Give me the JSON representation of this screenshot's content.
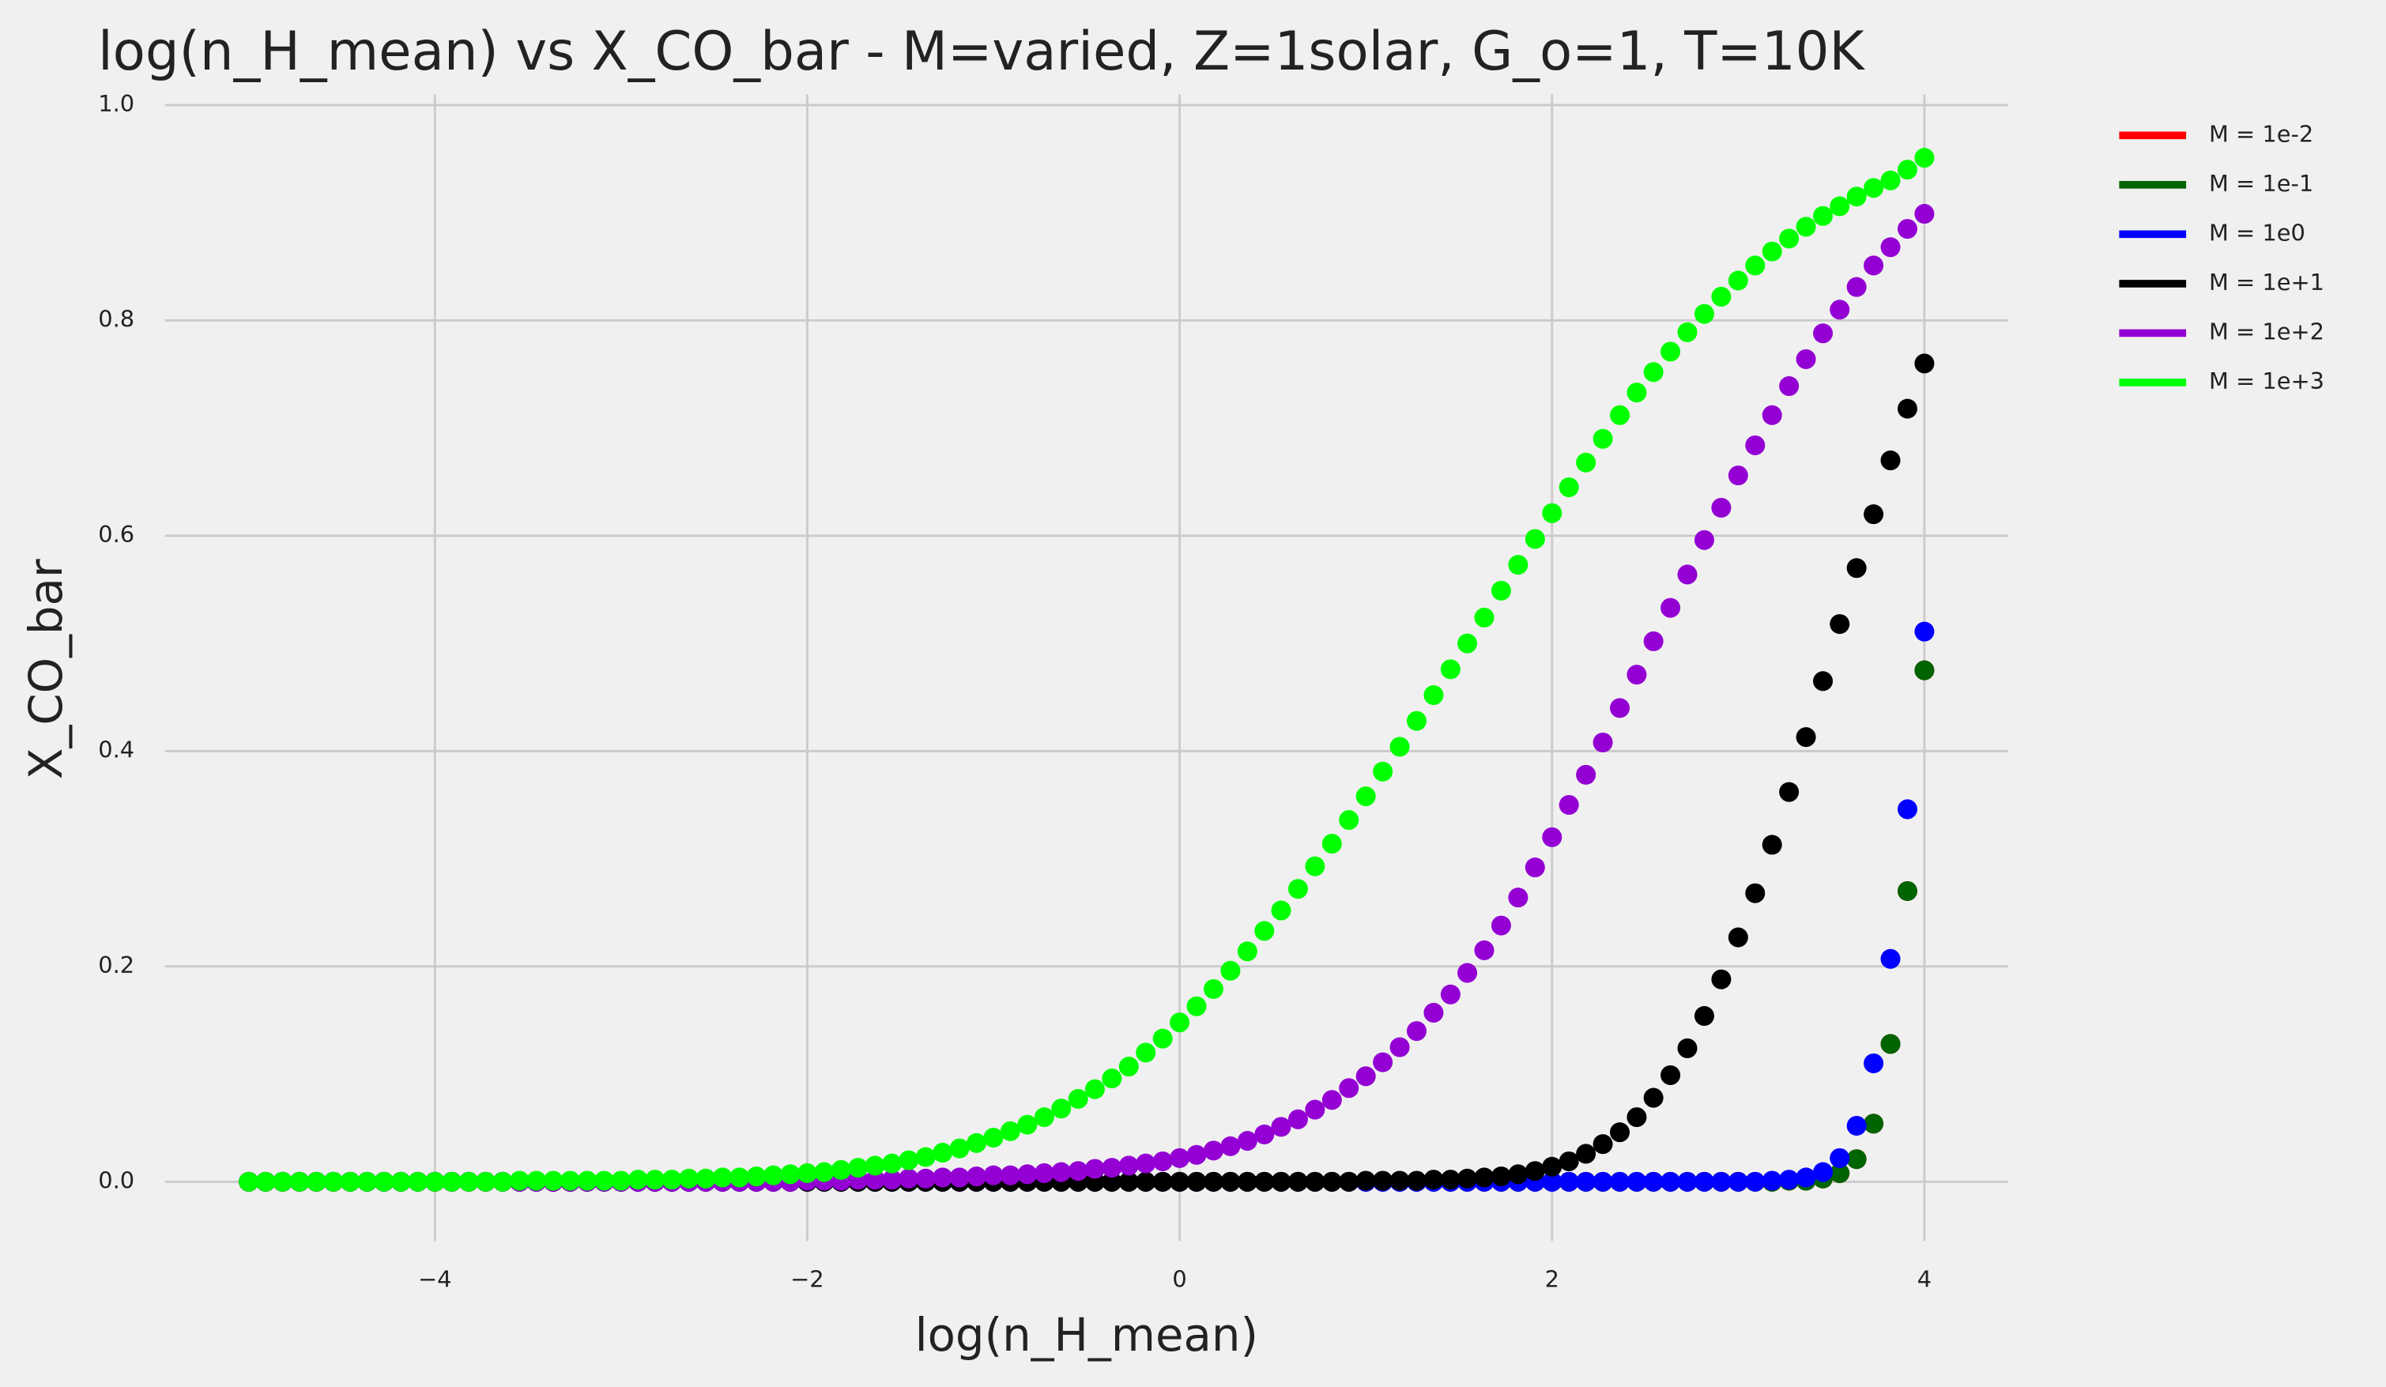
{
  "chart_data": {
    "type": "scatter",
    "title": "log(n_H_mean) vs X_CO_bar - M=varied, Z=1solar, G_o=1, T=10K",
    "x_label": "log(n_H_mean)",
    "y_label": "X_CO_bar",
    "xlim": [
      -5.45,
      4.45
    ],
    "ylim": [
      -0.055,
      1.01
    ],
    "xticks": [
      {
        "value": -4,
        "label": "−4"
      },
      {
        "value": -2,
        "label": "−2"
      },
      0,
      2,
      4
    ],
    "yticks": [
      {
        "value": 0,
        "label": "0.0"
      },
      0.2,
      0.4,
      0.6,
      0.8,
      {
        "value": 1,
        "label": "1.0"
      }
    ],
    "grid": true,
    "legend": "outside-right",
    "x": [
      -5,
      -4.909,
      -4.818,
      -4.727,
      -4.636,
      -4.545,
      -4.455,
      -4.364,
      -4.273,
      -4.182,
      -4.091,
      -4,
      -3.909,
      -3.818,
      -3.727,
      -3.636,
      -3.545,
      -3.455,
      -3.364,
      -3.273,
      -3.182,
      -3.091,
      -3,
      -2.909,
      -2.818,
      -2.727,
      -2.636,
      -2.545,
      -2.455,
      -2.364,
      -2.273,
      -2.182,
      -2.091,
      -2,
      -1.909,
      -1.818,
      -1.727,
      -1.636,
      -1.545,
      -1.455,
      -1.364,
      -1.273,
      -1.182,
      -1.091,
      -1,
      -0.909,
      -0.818,
      -0.727,
      -0.636,
      -0.545,
      -0.455,
      -0.364,
      -0.273,
      -0.182,
      -0.091,
      0,
      0.091,
      0.182,
      0.273,
      0.364,
      0.455,
      0.545,
      0.636,
      0.727,
      0.818,
      0.909,
      1,
      1.091,
      1.182,
      1.273,
      1.364,
      1.455,
      1.545,
      1.636,
      1.727,
      1.818,
      1.909,
      2,
      2.091,
      2.182,
      2.273,
      2.364,
      2.455,
      2.545,
      2.636,
      2.727,
      2.818,
      2.909,
      3,
      3.091,
      3.182,
      3.273,
      3.364,
      3.455,
      3.545,
      3.636,
      3.727,
      3.818,
      3.909,
      4
    ],
    "series": [
      {
        "name": "M = 1e-2",
        "color": "#ff0000",
        "values": [
          0,
          0,
          0,
          0,
          0,
          0,
          0,
          0,
          0,
          0,
          0,
          0,
          0,
          0,
          0,
          0,
          0,
          0,
          0,
          0,
          0,
          0,
          0,
          0,
          0,
          0,
          0,
          0,
          0,
          0,
          0,
          0,
          0,
          0,
          0,
          0,
          0,
          0,
          0,
          0,
          0,
          0,
          0,
          0,
          0,
          0,
          0,
          0,
          0,
          0,
          0,
          0,
          0,
          0,
          0,
          0,
          0,
          0,
          0,
          0,
          0,
          0,
          0,
          0,
          0,
          0,
          0,
          0,
          0,
          0,
          0,
          0,
          0,
          0,
          0,
          0,
          0,
          0,
          0,
          0,
          0,
          0,
          0,
          0,
          0,
          0,
          0,
          0,
          0,
          0,
          0,
          0.001,
          0.001,
          0.003,
          0.008,
          0.021,
          0.054,
          0.128,
          0.27,
          0.475
        ]
      },
      {
        "name": "M = 1e-1",
        "color": "#006400",
        "values": [
          0,
          0,
          0,
          0,
          0,
          0,
          0,
          0,
          0,
          0,
          0,
          0,
          0,
          0,
          0,
          0,
          0,
          0,
          0,
          0,
          0,
          0,
          0,
          0,
          0,
          0,
          0,
          0,
          0,
          0,
          0,
          0,
          0,
          0,
          0,
          0,
          0,
          0,
          0,
          0,
          0,
          0,
          0,
          0,
          0,
          0,
          0,
          0,
          0,
          0,
          0,
          0,
          0,
          0,
          0,
          0,
          0,
          0,
          0,
          0,
          0,
          0,
          0,
          0,
          0,
          0,
          0,
          0,
          0,
          0,
          0,
          0,
          0,
          0,
          0,
          0,
          0,
          0,
          0,
          0,
          0,
          0,
          0,
          0,
          0,
          0,
          0,
          0,
          0,
          0,
          0,
          0.001,
          0.001,
          0.003,
          0.008,
          0.021,
          0.054,
          0.128,
          0.27,
          0.475
        ]
      },
      {
        "name": "M = 1e0",
        "color": "#0000ff",
        "values": [
          0,
          0,
          0,
          0,
          0,
          0,
          0,
          0,
          0,
          0,
          0,
          0,
          0,
          0,
          0,
          0,
          0,
          0,
          0,
          0,
          0,
          0,
          0,
          0,
          0,
          0,
          0,
          0,
          0,
          0,
          0,
          0,
          0,
          0,
          0,
          0,
          0,
          0,
          0,
          0,
          0,
          0,
          0,
          0,
          0,
          0,
          0,
          0,
          0,
          0,
          0,
          0,
          0,
          0,
          0,
          0,
          0,
          0,
          0,
          0,
          0,
          0,
          0,
          0,
          0,
          0,
          0,
          0,
          0,
          0,
          0,
          0,
          0,
          0,
          0,
          0,
          0,
          0,
          0,
          0,
          0,
          0,
          0,
          0,
          0,
          0,
          0,
          0,
          0,
          0,
          0.001,
          0.002,
          0.004,
          0.009,
          0.022,
          0.052,
          0.11,
          0.207,
          0.346,
          0.511
        ]
      },
      {
        "name": "M = 1e+1",
        "color": "#000000",
        "values": [
          0,
          0,
          0,
          0,
          0,
          0,
          0,
          0,
          0,
          0,
          0,
          0,
          0,
          0,
          0,
          0,
          0,
          0,
          0,
          0,
          0,
          0,
          0,
          0,
          0,
          0,
          0,
          0,
          0,
          0,
          0,
          0,
          0,
          0,
          0,
          0,
          0,
          0,
          0,
          0,
          0,
          0,
          0,
          0,
          0,
          0,
          0,
          0,
          0,
          0,
          0,
          0,
          0,
          0,
          0,
          0,
          0,
          0,
          0,
          0,
          0,
          0,
          0,
          0,
          0,
          0,
          0.001,
          0.001,
          0.001,
          0.001,
          0.002,
          0.002,
          0.003,
          0.004,
          0.005,
          0.007,
          0.01,
          0.014,
          0.019,
          0.026,
          0.035,
          0.046,
          0.06,
          0.078,
          0.099,
          0.124,
          0.154,
          0.188,
          0.227,
          0.268,
          0.313,
          0.362,
          0.413,
          0.465,
          0.518,
          0.57,
          0.62,
          0.67,
          0.718,
          0.76
        ]
      },
      {
        "name": "M = 1e+2",
        "color": "#9400d3",
        "values": [
          0,
          0,
          0,
          0,
          0,
          0,
          0,
          0,
          0,
          0,
          0,
          0,
          0,
          0,
          0,
          0,
          0,
          0,
          0,
          0,
          0,
          0,
          0,
          0,
          0,
          0,
          0,
          0,
          0,
          0,
          0,
          0,
          0,
          0.001,
          0.001,
          0.001,
          0.002,
          0.002,
          0.002,
          0.003,
          0.003,
          0.004,
          0.004,
          0.005,
          0.006,
          0.006,
          0.007,
          0.008,
          0.009,
          0.01,
          0.012,
          0.013,
          0.015,
          0.017,
          0.019,
          0.022,
          0.025,
          0.029,
          0.033,
          0.038,
          0.044,
          0.051,
          0.058,
          0.067,
          0.076,
          0.087,
          0.098,
          0.111,
          0.125,
          0.14,
          0.157,
          0.174,
          0.194,
          0.215,
          0.238,
          0.264,
          0.292,
          0.32,
          0.35,
          0.378,
          0.408,
          0.44,
          0.471,
          0.502,
          0.533,
          0.564,
          0.596,
          0.626,
          0.656,
          0.684,
          0.712,
          0.739,
          0.764,
          0.788,
          0.81,
          0.831,
          0.851,
          0.868,
          0.885,
          0.899
        ]
      },
      {
        "name": "M = 1e+3",
        "color": "#00ff00",
        "values": [
          0,
          0,
          0,
          0,
          0,
          0,
          0,
          0,
          0,
          0,
          0,
          0,
          0,
          0,
          0,
          0,
          0.001,
          0.001,
          0.001,
          0.001,
          0.001,
          0.001,
          0.001,
          0.002,
          0.002,
          0.002,
          0.003,
          0.003,
          0.004,
          0.004,
          0.005,
          0.006,
          0.007,
          0.008,
          0.009,
          0.011,
          0.013,
          0.015,
          0.017,
          0.02,
          0.023,
          0.027,
          0.031,
          0.036,
          0.041,
          0.047,
          0.053,
          0.06,
          0.068,
          0.077,
          0.086,
          0.096,
          0.107,
          0.12,
          0.133,
          0.148,
          0.163,
          0.179,
          0.196,
          0.214,
          0.233,
          0.252,
          0.272,
          0.293,
          0.314,
          0.336,
          0.358,
          0.381,
          0.404,
          0.428,
          0.452,
          0.476,
          0.5,
          0.524,
          0.549,
          0.573,
          0.597,
          0.621,
          0.645,
          0.668,
          0.69,
          0.712,
          0.733,
          0.752,
          0.771,
          0.789,
          0.806,
          0.822,
          0.837,
          0.851,
          0.864,
          0.876,
          0.887,
          0.897,
          0.906,
          0.915,
          0.923,
          0.93,
          0.94,
          0.951
        ]
      }
    ]
  }
}
